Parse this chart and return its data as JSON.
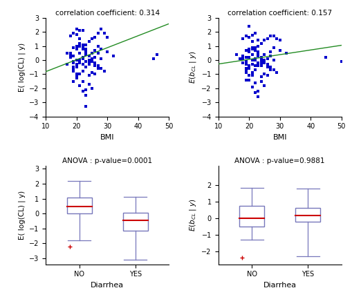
{
  "top_left": {
    "title": "correlation coefficient: 0.314",
    "xlabel": "BMI",
    "ylabel": "E( log(CL) | y)",
    "xlim": [
      10,
      50
    ],
    "ylim": [
      -4,
      3
    ],
    "yticks": [
      -4,
      -3,
      -2,
      -1,
      0,
      1,
      2,
      3
    ],
    "xticks": [
      10,
      20,
      30,
      40,
      50
    ],
    "line_x": [
      10,
      50
    ],
    "line_y": [
      -0.82,
      2.58
    ],
    "scatter_x": [
      17,
      18,
      17,
      19,
      20,
      18,
      19,
      20,
      21,
      22,
      18,
      19,
      20,
      21,
      22,
      23,
      18,
      19,
      20,
      21,
      22,
      23,
      24,
      19,
      20,
      21,
      22,
      23,
      24,
      25,
      19,
      20,
      21,
      22,
      23,
      24,
      25,
      26,
      19,
      20,
      21,
      22,
      23,
      24,
      25,
      26,
      27,
      19,
      20,
      21,
      22,
      23,
      24,
      25,
      26,
      27,
      28,
      19,
      20,
      21,
      22,
      23,
      24,
      25,
      26,
      27,
      28,
      29,
      20,
      21,
      22,
      23,
      24,
      25,
      26,
      27,
      28,
      29,
      30,
      22,
      23,
      24,
      25,
      26,
      27,
      28,
      30,
      32,
      45,
      46,
      20,
      21,
      22,
      23,
      24,
      25
    ],
    "scatter_y": [
      0.5,
      0.3,
      -0.3,
      -0.1,
      0.0,
      1.7,
      1.9,
      1.8,
      1.5,
      1.1,
      0.2,
      0.9,
      1.0,
      1.2,
      1.1,
      0.8,
      0.5,
      -0.5,
      -0.3,
      0.0,
      0.2,
      0.4,
      0.3,
      -0.7,
      -0.5,
      -0.2,
      0.1,
      0.7,
      0.3,
      0.1,
      -1.5,
      -1.2,
      -1.0,
      -0.8,
      -0.5,
      -0.3,
      0.0,
      0.2,
      0.3,
      0.8,
      1.0,
      0.9,
      0.6,
      0.3,
      -0.1,
      -0.4,
      -0.6,
      -0.8,
      -1.3,
      -1.8,
      -2.2,
      -2.5,
      -1.1,
      -0.9,
      -1.0,
      0.5,
      0.1,
      -0.2,
      -0.5,
      -1.0,
      -1.5,
      -2.1,
      0.0,
      -0.1,
      -0.2,
      -0.4,
      -0.6,
      -0.8,
      -1.0,
      0.5,
      0.8,
      1.1,
      1.3,
      1.5,
      1.6,
      1.9,
      2.2,
      1.9,
      1.6,
      2.1,
      -3.3,
      -0.2,
      0.5,
      0.7,
      1.0,
      0.8,
      0.6,
      0.3,
      0.1,
      0.4,
      2.2,
      2.1,
      -0.3,
      -0.1,
      -1.7,
      -2.0
    ]
  },
  "top_right": {
    "title": "correlation coefficient: 0.157",
    "xlabel": "BMI",
    "ylabel_math": "E( b_{CL} | y)",
    "xlim": [
      10,
      50
    ],
    "ylim": [
      -4,
      3
    ],
    "yticks": [
      -4,
      -3,
      -2,
      -1,
      0,
      1,
      2,
      3
    ],
    "xticks": [
      10,
      20,
      30,
      40,
      50
    ],
    "line_x": [
      10,
      50
    ],
    "line_y": [
      -0.28,
      1.05
    ],
    "scatter_x": [
      16,
      17,
      18,
      19,
      20,
      18,
      19,
      20,
      21,
      22,
      18,
      19,
      20,
      21,
      22,
      23,
      18,
      19,
      20,
      21,
      22,
      23,
      24,
      19,
      20,
      21,
      22,
      23,
      24,
      25,
      19,
      20,
      21,
      22,
      23,
      24,
      25,
      26,
      19,
      20,
      21,
      22,
      23,
      24,
      25,
      26,
      27,
      19,
      20,
      21,
      22,
      23,
      24,
      25,
      26,
      27,
      28,
      19,
      20,
      21,
      22,
      23,
      24,
      25,
      26,
      27,
      28,
      29,
      20,
      21,
      22,
      23,
      24,
      25,
      26,
      27,
      28,
      29,
      30,
      22,
      23,
      24,
      25,
      27,
      28,
      30,
      32,
      45,
      50,
      20,
      21,
      22,
      23,
      24,
      25
    ],
    "scatter_y": [
      0.4,
      0.1,
      -0.2,
      -0.1,
      0.2,
      1.5,
      1.7,
      1.6,
      1.3,
      0.9,
      0.1,
      0.7,
      0.8,
      0.9,
      0.8,
      0.6,
      0.3,
      -0.6,
      -0.4,
      0.0,
      0.1,
      0.3,
      0.2,
      -0.8,
      -0.6,
      -0.3,
      0.0,
      0.6,
      0.2,
      0.0,
      -1.4,
      -1.1,
      -0.9,
      -0.7,
      -0.4,
      -0.2,
      0.0,
      0.1,
      0.2,
      0.6,
      0.8,
      0.7,
      0.4,
      0.1,
      -0.2,
      -0.5,
      -0.7,
      -0.9,
      -1.4,
      -1.9,
      -2.3,
      -2.6,
      -1.2,
      -1.0,
      -1.1,
      0.3,
      0.0,
      -0.3,
      -0.6,
      -1.1,
      -1.6,
      -2.2,
      0.0,
      -0.2,
      -0.3,
      -0.5,
      -0.7,
      -0.9,
      -1.1,
      0.4,
      0.7,
      1.0,
      1.2,
      1.4,
      1.5,
      1.7,
      1.7,
      1.5,
      1.4,
      1.9,
      1.4,
      -0.4,
      0.4,
      0.6,
      0.9,
      0.7,
      0.5,
      0.2,
      -0.1,
      2.4,
      1.75,
      -0.4,
      -0.2,
      -1.5,
      -1.8
    ]
  },
  "bottom_left": {
    "title": "ANOVA : p-value=0.0001",
    "xlabel": "Diarrhea",
    "ylabel": "E( log(CL) | y)",
    "ylim": [
      -3.4,
      3.2
    ],
    "yticks": [
      -3,
      -2,
      -1,
      0,
      1,
      2,
      3
    ],
    "categories": [
      "NO",
      "YES"
    ],
    "no_stats": {
      "whislo": -1.8,
      "q1": 0.0,
      "med": 0.45,
      "q3": 1.05,
      "whishi": 2.2,
      "fliers": [
        -2.2
      ]
    },
    "yes_stats": {
      "whislo": -3.1,
      "q1": -1.15,
      "med": -0.45,
      "q3": 0.05,
      "whishi": 1.1,
      "fliers": []
    }
  },
  "bottom_right": {
    "title": "ANOVA : p-value=0.9881",
    "xlabel": "Diarrhea",
    "ylabel_math": "E( b_{CL} | y)",
    "ylim": [
      -2.8,
      3.2
    ],
    "yticks": [
      -2,
      -1,
      0,
      1,
      2
    ],
    "categories": [
      "NO",
      "YES"
    ],
    "no_stats": {
      "whislo": -1.3,
      "q1": -0.5,
      "med": 0.0,
      "q3": 0.75,
      "whishi": 1.85,
      "fliers": [
        -2.4
      ]
    },
    "yes_stats": {
      "whislo": -2.3,
      "q1": -0.2,
      "med": 0.18,
      "q3": 0.65,
      "whishi": 1.8,
      "fliers": []
    }
  },
  "scatter_color": "#0000cc",
  "line_color": "#228B22",
  "box_color": "#7777bb",
  "median_color": "#cc0000",
  "flier_color": "#cc0000"
}
